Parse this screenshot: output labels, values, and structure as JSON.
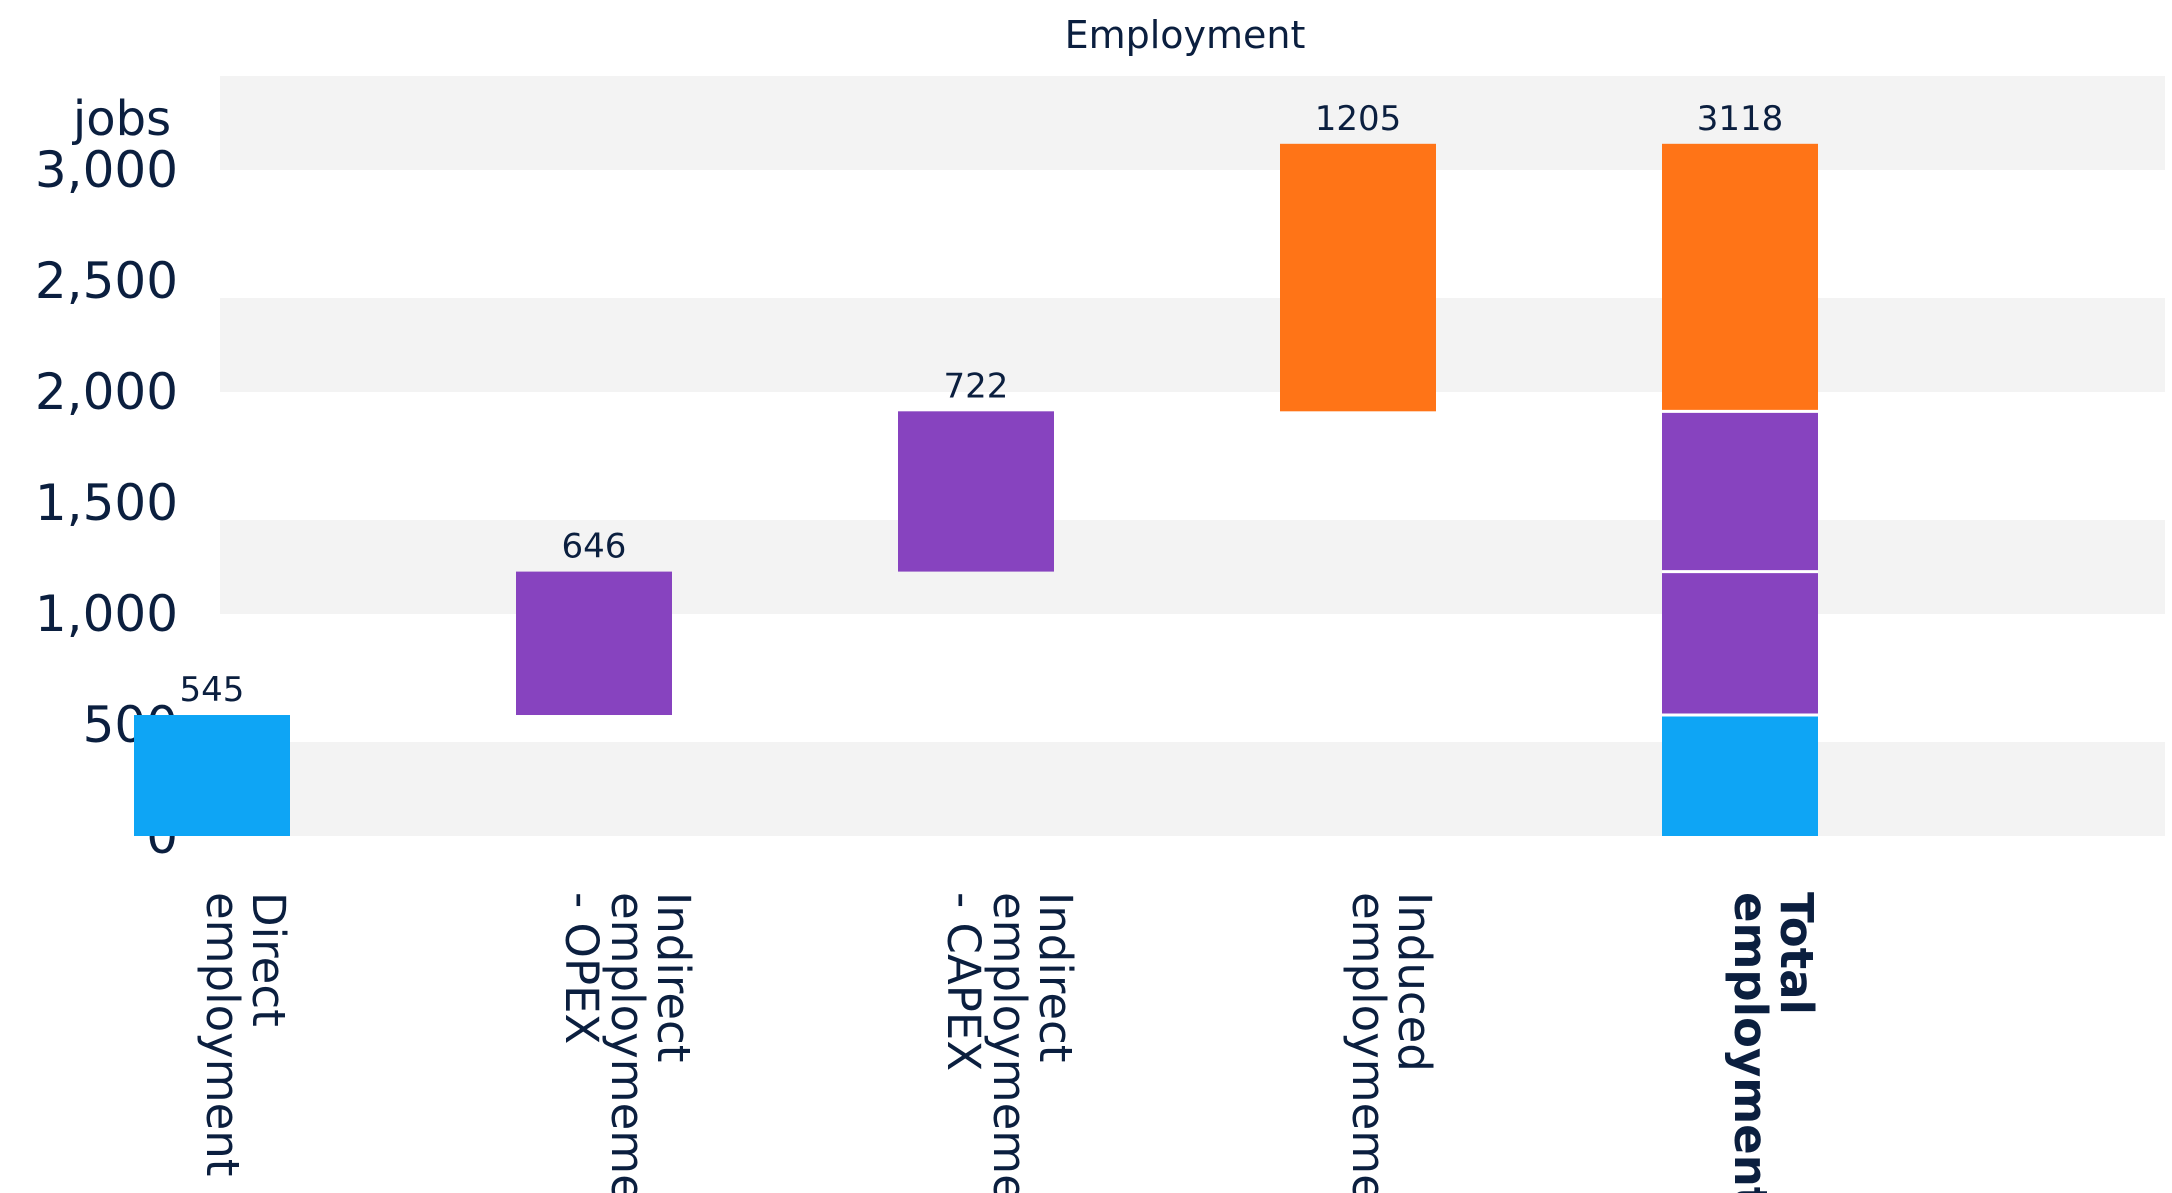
{
  "colors": {
    "direct": "#0ea5f5",
    "indirect": "#8743bf",
    "induced": "#ff7417",
    "band": "#f3f3f3",
    "text": "#0b1f3f",
    "background": "#ffffff"
  },
  "chart_data": {
    "type": "bar",
    "subtype": "waterfall",
    "title": "Employment",
    "ylabel": "jobs",
    "xlabel": "",
    "ylim": [
      0,
      3350
    ],
    "y_ticks": [
      0,
      500,
      1000,
      1500,
      2000,
      2500,
      3000
    ],
    "y_tick_labels": [
      "0",
      "500",
      "1,000",
      "1,500",
      "2,000",
      "2,500",
      "3,000"
    ],
    "grid": "alternating horizontal bands",
    "legend": "none",
    "categories": [
      "Direct employment",
      "Indirect employmement - OPEX",
      "Indirect employmement - CAPEX",
      "Induced employmement",
      "Total employment"
    ],
    "category_label_lines": [
      [
        "Direct",
        "employment"
      ],
      [
        "Indirect",
        "employmement",
        "- OPEX"
      ],
      [
        "Indirect",
        "employmement",
        "- CAPEX"
      ],
      [
        "Induced",
        "employmement"
      ],
      [
        "Total",
        "employment"
      ]
    ],
    "category_label_bold": [
      false,
      false,
      false,
      false,
      true
    ],
    "values": [
      545,
      646,
      722,
      1205,
      3118
    ],
    "data_labels": [
      "545",
      "646",
      "722",
      "1205",
      "3118"
    ],
    "series_colors": [
      "direct",
      "indirect",
      "indirect",
      "induced"
    ],
    "total_index": 4
  }
}
